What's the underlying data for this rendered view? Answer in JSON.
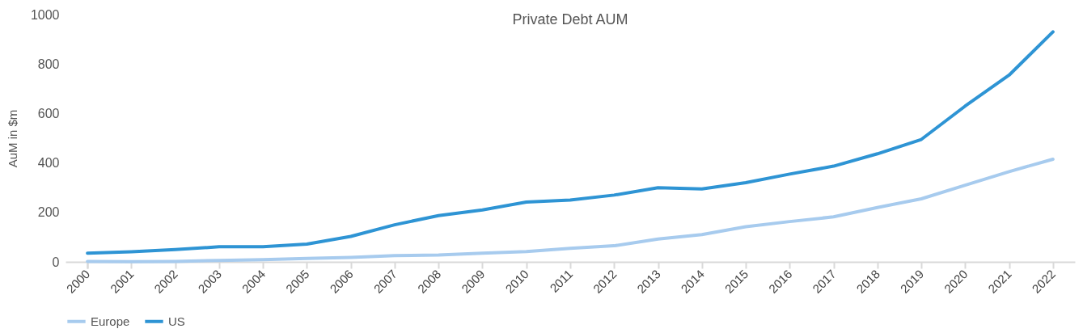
{
  "chart_data": {
    "type": "line",
    "title": "Private Debt AUM",
    "ylabel": "AuM in $m",
    "categories": [
      "2000",
      "2001",
      "2002",
      "2003",
      "2004",
      "2005",
      "2006",
      "2007",
      "2008",
      "2009",
      "2010",
      "2011",
      "2012",
      "2013",
      "2014",
      "2015",
      "2016",
      "2017",
      "2018",
      "2019",
      "2020",
      "2021",
      "2022"
    ],
    "series": [
      {
        "name": "Europe",
        "color": "#a7cbee",
        "values": [
          2,
          1,
          2,
          6,
          9,
          14,
          18,
          25,
          28,
          35,
          42,
          55,
          65,
          92,
          110,
          142,
          163,
          182,
          220,
          255,
          310,
          365,
          415
        ]
      },
      {
        "name": "US",
        "color": "#2e94d4",
        "values": [
          35,
          41,
          50,
          61,
          61,
          72,
          103,
          150,
          187,
          210,
          242,
          250,
          270,
          300,
          295,
          320,
          355,
          387,
          437,
          495,
          630,
          755,
          930
        ]
      }
    ],
    "ylim": [
      0,
      1000
    ],
    "yticks": [
      0,
      200,
      400,
      600,
      800,
      1000
    ],
    "legend": "bottom"
  }
}
